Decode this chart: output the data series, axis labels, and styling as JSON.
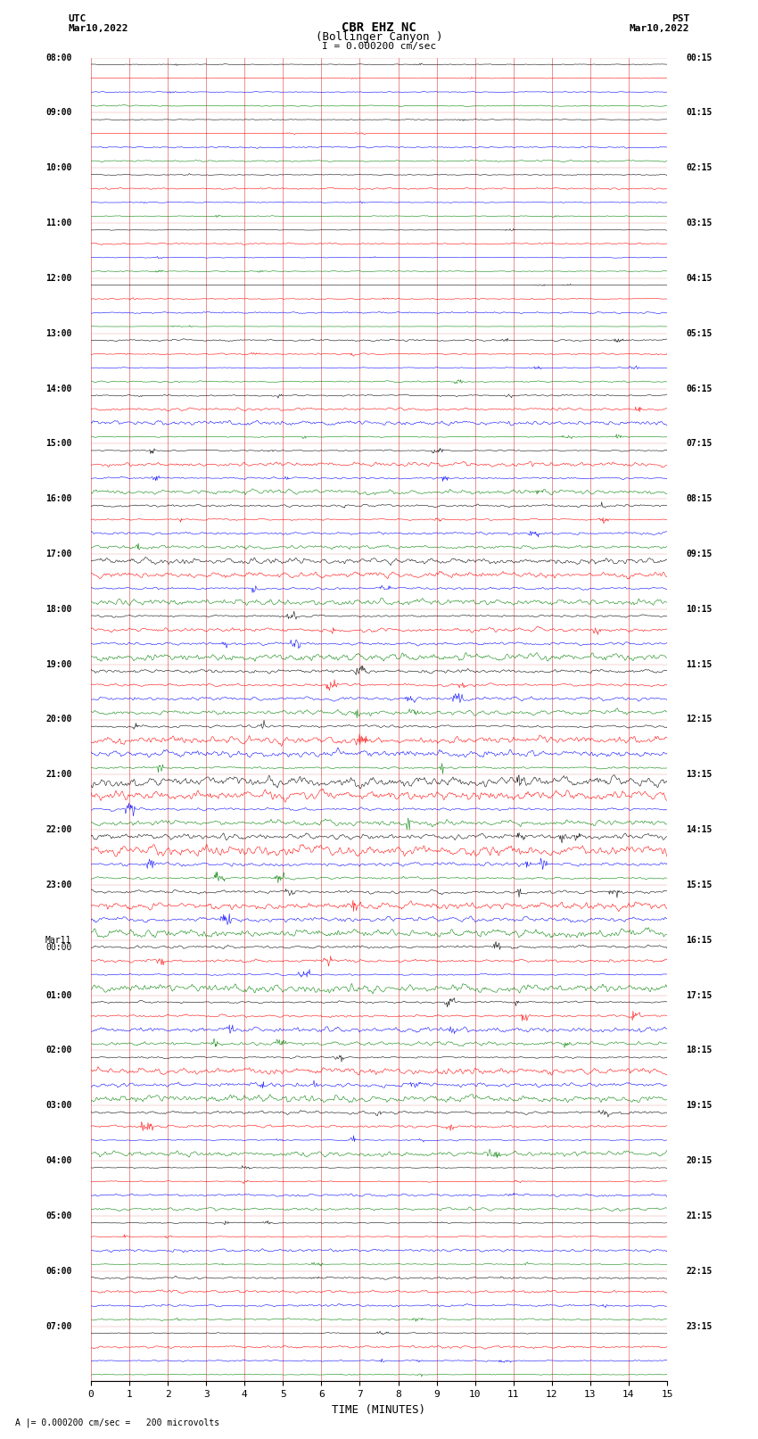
{
  "title_line1": "CBR EHZ NC",
  "title_line2": "(Bollinger Canyon )",
  "title_line3": "I = 0.000200 cm/sec",
  "left_label_line1": "UTC",
  "left_label_line2": "Mar10,2022",
  "right_label_line1": "PST",
  "right_label_line2": "Mar10,2022",
  "bottom_label": "TIME (MINUTES)",
  "scale_label": "A |= 0.000200 cm/sec =   200 microvolts",
  "utc_times": [
    "08:00",
    "09:00",
    "10:00",
    "11:00",
    "12:00",
    "13:00",
    "14:00",
    "15:00",
    "16:00",
    "17:00",
    "18:00",
    "19:00",
    "20:00",
    "21:00",
    "22:00",
    "23:00",
    "Mar11\n00:00",
    "01:00",
    "02:00",
    "03:00",
    "04:00",
    "05:00",
    "06:00",
    "07:00"
  ],
  "pst_times": [
    "00:15",
    "01:15",
    "02:15",
    "03:15",
    "04:15",
    "05:15",
    "06:15",
    "07:15",
    "08:15",
    "09:15",
    "10:15",
    "11:15",
    "12:15",
    "13:15",
    "14:15",
    "15:15",
    "16:15",
    "17:15",
    "18:15",
    "19:15",
    "20:15",
    "21:15",
    "22:15",
    "23:15"
  ],
  "n_rows": 96,
  "n_points": 900,
  "colors_cycle": [
    "black",
    "red",
    "blue",
    "green"
  ],
  "xlim": [
    0,
    15
  ],
  "xticks": [
    0,
    1,
    2,
    3,
    4,
    5,
    6,
    7,
    8,
    9,
    10,
    11,
    12,
    13,
    14,
    15
  ],
  "background_color": "#ffffff",
  "grid_color": "#cc0000",
  "grid_alpha": 0.6,
  "amplitude_scale": 1.0,
  "fig_width": 8.5,
  "fig_height": 16.13,
  "dpi": 100
}
